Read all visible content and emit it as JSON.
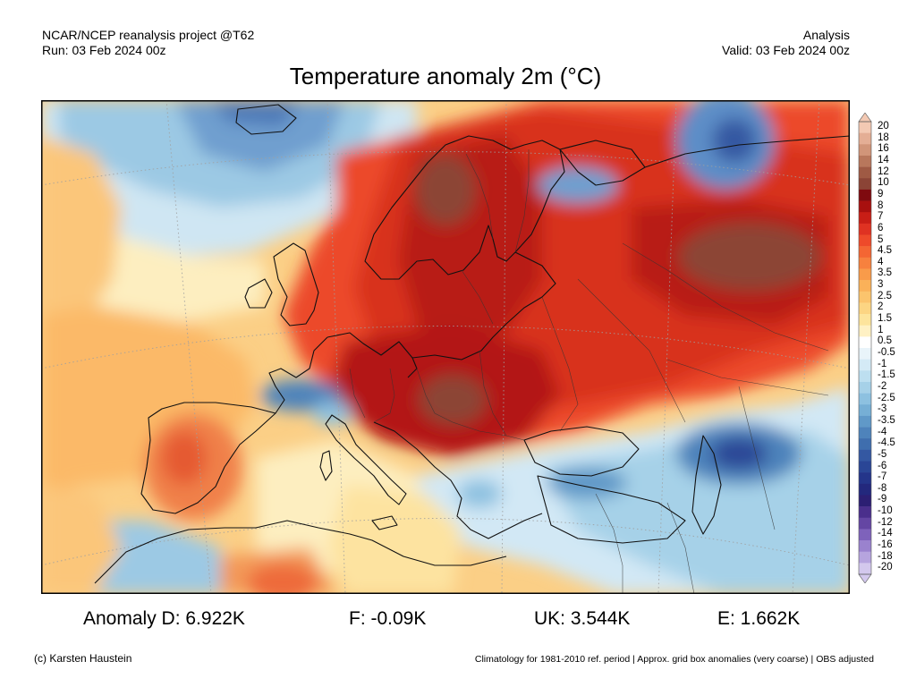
{
  "header": {
    "left_line1": "NCAR/NCEP reanalysis project @T62",
    "left_line2": "Run: 03 Feb 2024 00z",
    "right_line1": "Analysis",
    "right_line2": "Valid: 03 Feb 2024 00z"
  },
  "title": "Temperature anomaly 2m (°C)",
  "colorbar": {
    "labels": [
      "20",
      "18",
      "16",
      "14",
      "12",
      "10",
      "9",
      "8",
      "7",
      "6",
      "5",
      "4.5",
      "4",
      "3.5",
      "3",
      "2.5",
      "2",
      "1.5",
      "1",
      "0.5",
      "-0.5",
      "-1",
      "-1.5",
      "-2",
      "-2.5",
      "-3",
      "-3.5",
      "-4",
      "-4.5",
      "-5",
      "-6",
      "-7",
      "-8",
      "-9",
      "-10",
      "-12",
      "-14",
      "-16",
      "-18",
      "-20"
    ],
    "colors": [
      "#f3c9b3",
      "#e4ae95",
      "#d19579",
      "#b8775c",
      "#9f5a44",
      "#8b4436",
      "#7f0a0f",
      "#a8100f",
      "#c81e16",
      "#df3222",
      "#ee4a2a",
      "#f46633",
      "#f7813e",
      "#f99b4a",
      "#fab159",
      "#fbc46d",
      "#fcd583",
      "#fde49c",
      "#fff1c4",
      "#ffffff",
      "#e9f4fa",
      "#d4eaf6",
      "#bddff0",
      "#a6d1e8",
      "#8dc1e0",
      "#76afd5",
      "#6099c8",
      "#4e83bb",
      "#3f6eae",
      "#3458a2",
      "#2a4696",
      "#24358a",
      "#23287d",
      "#2c1f73",
      "#4a2f8c",
      "#6446a3",
      "#7e62bb",
      "#9a82ce",
      "#b6a4de",
      "#d3c8ed"
    ]
  },
  "anomalies": {
    "d": "Anomaly D: 6.922K",
    "f": "F: -0.09K",
    "uk": "UK: 3.544K",
    "e": "E: 1.662K"
  },
  "footer": {
    "credit": "(c) Karsten Haustein",
    "note": "Climatology for 1981-2010 ref. period | Approx. grid box anomalies (very coarse) | OBS adjusted"
  }
}
